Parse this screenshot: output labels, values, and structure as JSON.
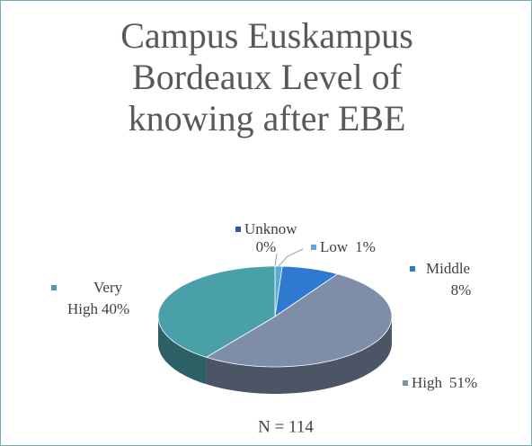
{
  "chart_data": {
    "type": "pie",
    "title": "Campus Euskampus Bordeaux Level of knowing after EBE",
    "categories": [
      "Unknow",
      "Low",
      "Middle",
      "High",
      "Very High"
    ],
    "values": [
      0,
      1,
      8,
      51,
      40
    ],
    "value_labels": [
      "0%",
      "1%",
      "8%",
      "51%",
      "40%"
    ],
    "colors": [
      "#2f55a4",
      "#5aa9d6",
      "#2e7ad1",
      "#7f8ea8",
      "#4aa0a8"
    ],
    "annotation": "N = 114"
  }
}
